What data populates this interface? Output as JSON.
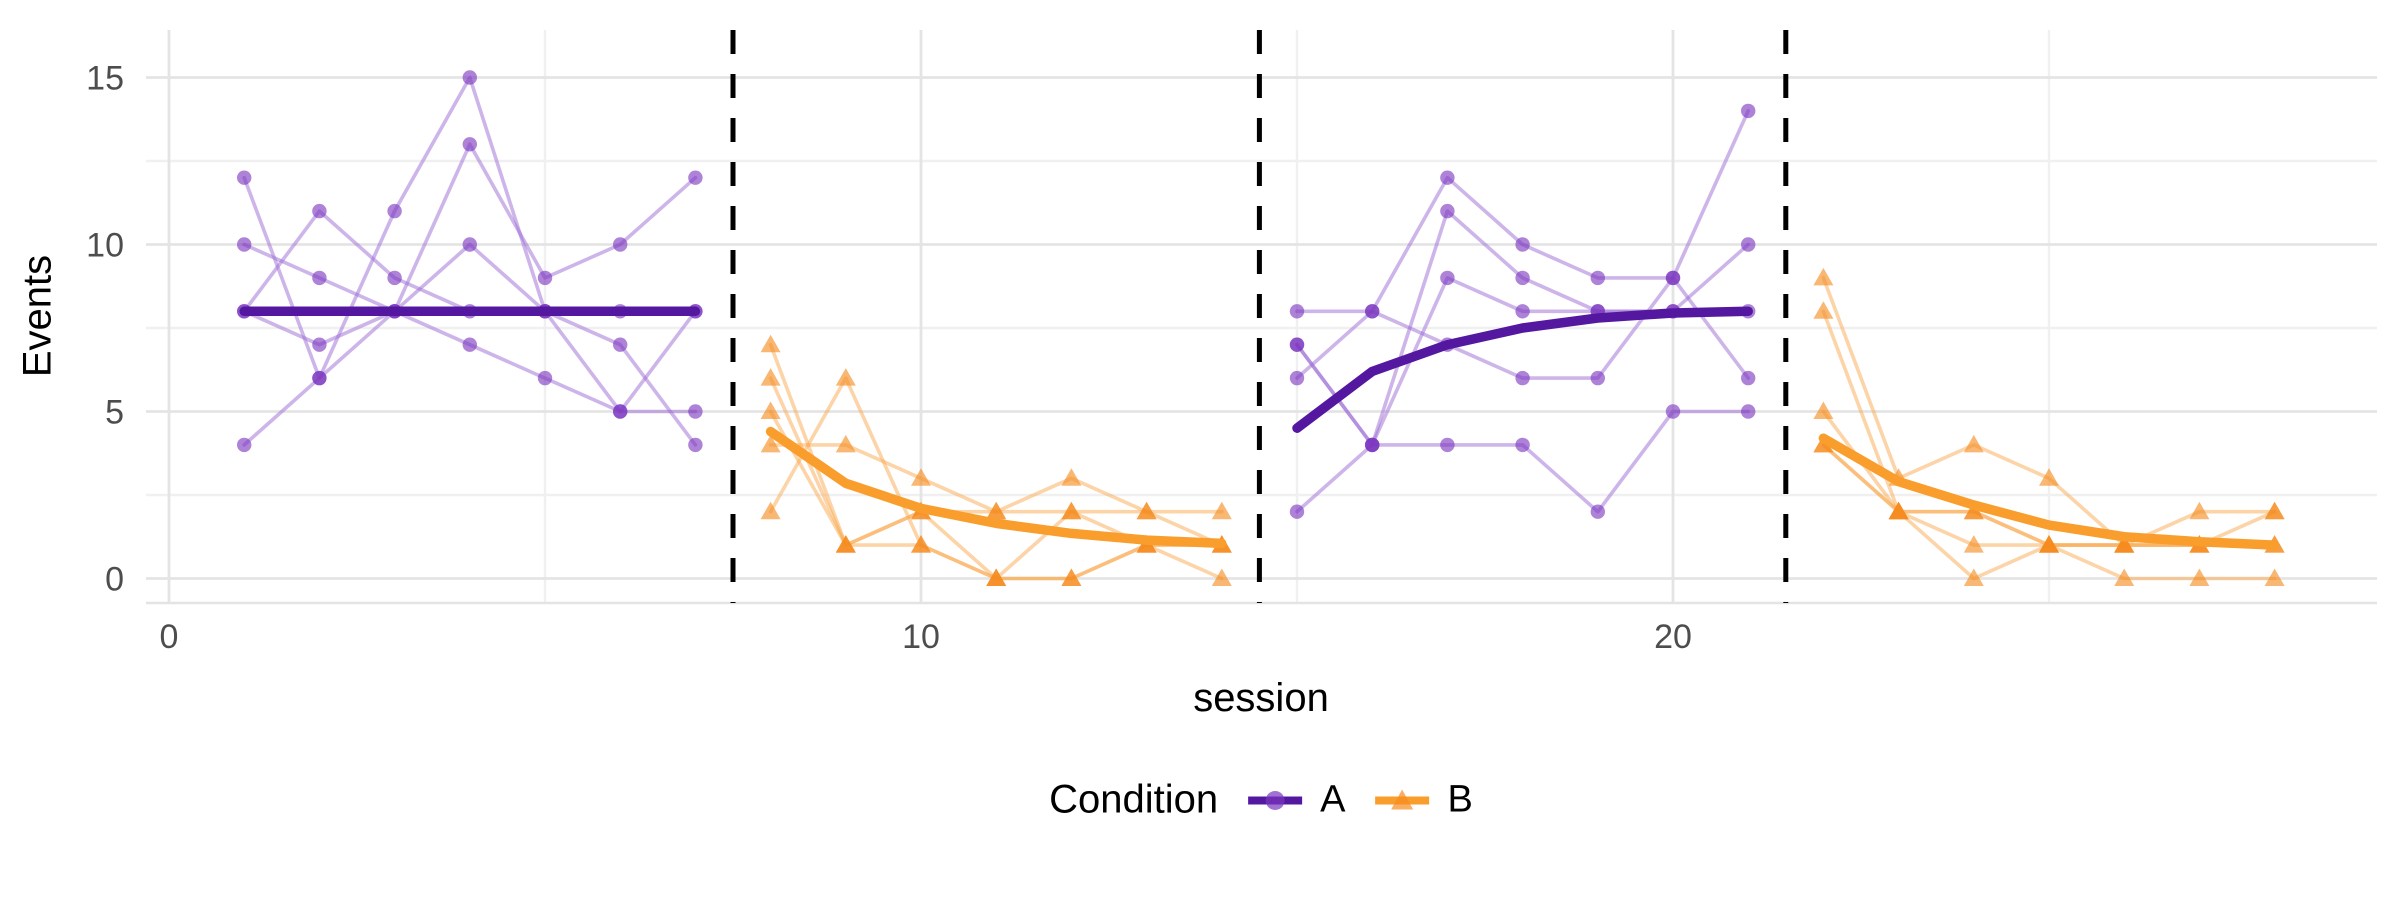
{
  "chart_data": {
    "type": "line",
    "title": "",
    "xlabel": "session",
    "ylabel": "Events",
    "x_ticks": [
      0,
      10,
      20
    ],
    "x_minor_ticks": [
      5,
      15,
      25
    ],
    "y_ticks": [
      0,
      5,
      10,
      15
    ],
    "y_minor_ticks": [
      2.5,
      7.5,
      12.5
    ],
    "xlim": [
      -0.3,
      29.4
    ],
    "ylim": [
      -0.75,
      16.4
    ],
    "grid": true,
    "phase_boundaries": [
      7.5,
      14.5,
      21.5
    ],
    "legend": {
      "title": "Condition",
      "position": "bottom",
      "entries": [
        {
          "label": "A",
          "marker": "circle"
        },
        {
          "label": "B",
          "marker": "triangle"
        }
      ]
    },
    "colors": {
      "a_trend": "#5418A0",
      "a_point": "#7A36BF",
      "a_line": "#9C6BD6",
      "b_trend": "#F99E2C",
      "b_point": "#F68B1F",
      "b_line": "#F9A94F",
      "grid_major": "#E4E4E4",
      "grid_minor": "#F0F0F0",
      "boundary": "#000000",
      "tick_text": "#4d4d4d",
      "title_text": "#000000"
    },
    "phases": [
      {
        "condition": "A",
        "sessions_start": 1,
        "subjects": [
          [
            12,
            6,
            11,
            15,
            8,
            5,
            5
          ],
          [
            10,
            9,
            8,
            13,
            9,
            10,
            12
          ],
          [
            8,
            7,
            8,
            10,
            8,
            7,
            4
          ],
          [
            8,
            11,
            9,
            8,
            8,
            8,
            8
          ],
          [
            4,
            6,
            8,
            7,
            6,
            5,
            8
          ]
        ],
        "trend": [
          [
            1,
            8
          ],
          [
            2,
            8
          ],
          [
            3,
            8
          ],
          [
            4,
            8
          ],
          [
            5,
            8
          ],
          [
            6,
            8
          ],
          [
            7,
            8
          ]
        ]
      },
      {
        "condition": "B",
        "sessions_start": 8,
        "subjects": [
          [
            7,
            1,
            2,
            0,
            2,
            1,
            1
          ],
          [
            6,
            1,
            1,
            0,
            0,
            1,
            0
          ],
          [
            5,
            1,
            2,
            2,
            3,
            2,
            2
          ],
          [
            4,
            4,
            3,
            2,
            2,
            2,
            1
          ],
          [
            2,
            6,
            1,
            0,
            0,
            1,
            1
          ]
        ],
        "trend": [
          [
            8,
            4.4
          ],
          [
            9,
            2.85
          ],
          [
            10,
            2.1
          ],
          [
            11,
            1.65
          ],
          [
            12,
            1.35
          ],
          [
            13,
            1.15
          ],
          [
            14,
            1.05
          ]
        ]
      },
      {
        "condition": "A",
        "sessions_start": 15,
        "subjects": [
          [
            8,
            8,
            12,
            10,
            9,
            9,
            14
          ],
          [
            7,
            4,
            11,
            9,
            8,
            8,
            10
          ],
          [
            7,
            4,
            9,
            8,
            8,
            8,
            8
          ],
          [
            6,
            8,
            7,
            6,
            6,
            9,
            6
          ],
          [
            2,
            4,
            4,
            4,
            2,
            5,
            5
          ]
        ],
        "trend": [
          [
            15,
            4.5
          ],
          [
            16,
            6.2
          ],
          [
            17,
            7.0
          ],
          [
            18,
            7.5
          ],
          [
            19,
            7.8
          ],
          [
            20,
            7.95
          ],
          [
            21,
            8.0
          ]
        ]
      },
      {
        "condition": "B",
        "sessions_start": 22,
        "subjects": [
          [
            9,
            3,
            4,
            3,
            1,
            2,
            2
          ],
          [
            8,
            2,
            2,
            1,
            1,
            1,
            1
          ],
          [
            5,
            2,
            2,
            1,
            1,
            1,
            2
          ],
          [
            4,
            2,
            1,
            1,
            1,
            1,
            1
          ],
          [
            4,
            2,
            0,
            1,
            0,
            0,
            0
          ]
        ],
        "trend": [
          [
            22,
            4.2
          ],
          [
            23,
            2.9
          ],
          [
            24,
            2.2
          ],
          [
            25,
            1.6
          ],
          [
            26,
            1.25
          ],
          [
            27,
            1.1
          ],
          [
            28,
            1.0
          ]
        ]
      }
    ]
  }
}
